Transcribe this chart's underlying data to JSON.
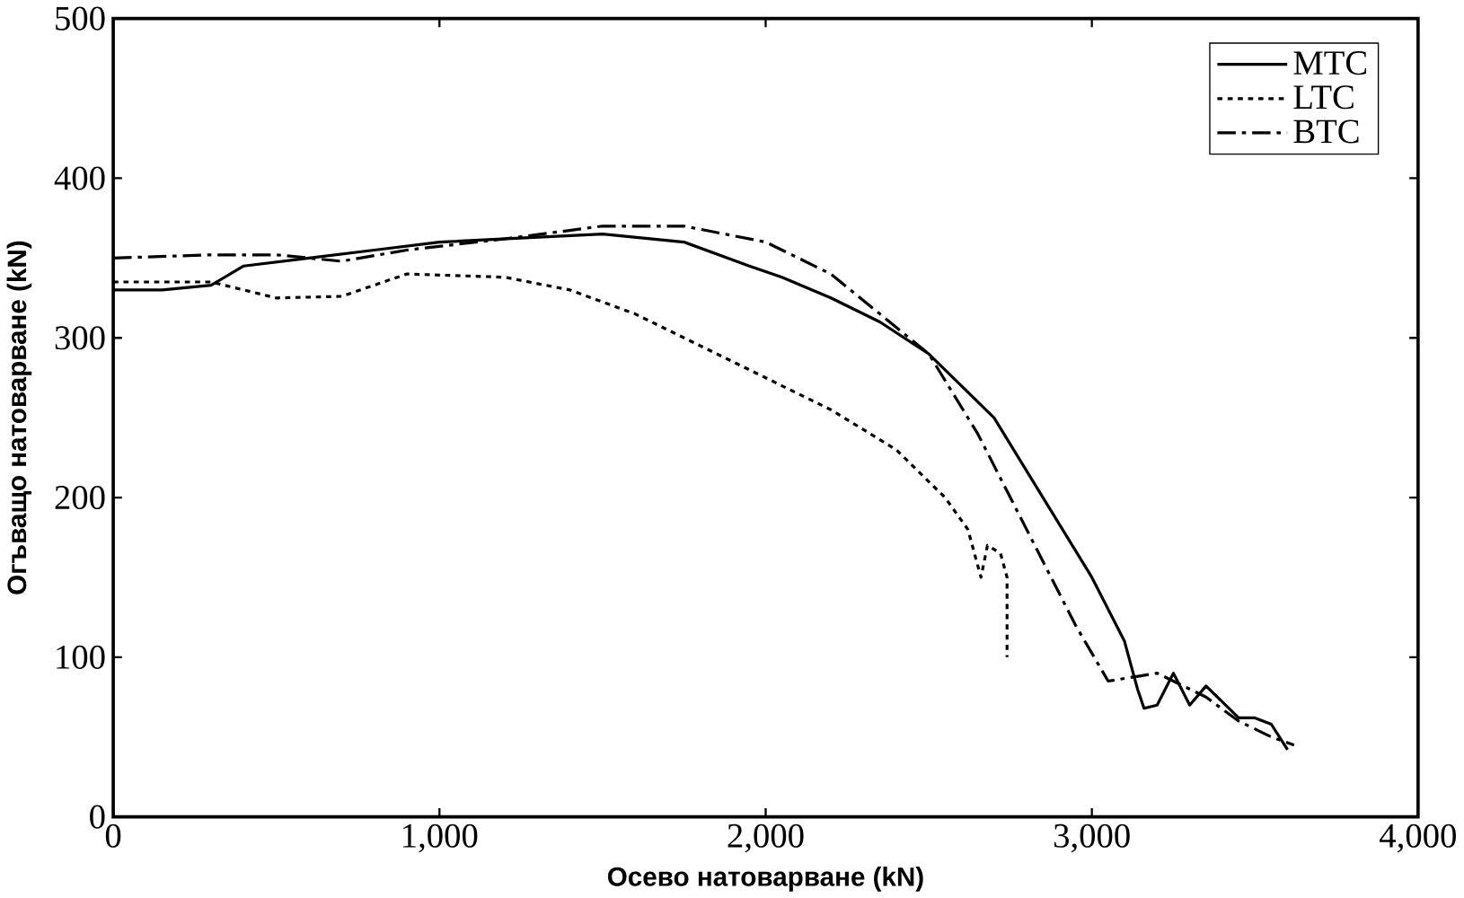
{
  "chart_data": {
    "type": "line",
    "xlabel": "Осево натоварване (kN)",
    "ylabel": "Огъващо натоварване  (kN)",
    "xlim": [
      0,
      4000
    ],
    "ylim": [
      0,
      500
    ],
    "xticks": [
      0,
      {
        "value": 1000,
        "label": "1,000"
      },
      {
        "value": 2000,
        "label": "2,000"
      },
      {
        "value": 3000,
        "label": "3,000"
      },
      {
        "value": 4000,
        "label": "4,000"
      }
    ],
    "yticks": [
      0,
      100,
      200,
      300,
      400,
      500
    ],
    "legend": "top right",
    "grid": false,
    "series": [
      {
        "name": "MTC",
        "color": "#000000",
        "line_style": "solid",
        "x": [
          0,
          150,
          300,
          400,
          600,
          800,
          1000,
          1200,
          1500,
          1750,
          1950,
          2050,
          2200,
          2350,
          2500,
          2700,
          2850,
          3000,
          3100,
          3140,
          3160,
          3200,
          3250,
          3300,
          3350,
          3400,
          3450,
          3500,
          3550,
          3600
        ],
        "values": [
          330,
          330,
          333,
          345,
          350,
          355,
          360,
          362,
          365,
          360,
          345,
          338,
          325,
          310,
          290,
          250,
          200,
          150,
          110,
          80,
          68,
          70,
          90,
          70,
          82,
          72,
          62,
          62,
          58,
          42
        ]
      },
      {
        "name": "LTC",
        "color": "#000000",
        "line_style": "dotted",
        "x": [
          0,
          300,
          400,
          500,
          700,
          900,
          1200,
          1400,
          1600,
          1800,
          2000,
          2200,
          2400,
          2550,
          2620,
          2660,
          2680,
          2720,
          2740,
          2740
        ],
        "values": [
          335,
          335,
          330,
          325,
          326,
          340,
          338,
          330,
          315,
          295,
          275,
          255,
          230,
          200,
          180,
          150,
          170,
          165,
          150,
          100
        ]
      },
      {
        "name": "BTC",
        "color": "#000000",
        "line_style": "dashdot",
        "x": [
          0,
          300,
          500,
          700,
          900,
          1200,
          1500,
          1750,
          2000,
          2200,
          2350,
          2500,
          2650,
          2800,
          2950,
          3050,
          3200,
          3350,
          3450,
          3550,
          3620
        ],
        "values": [
          350,
          352,
          352,
          348,
          355,
          362,
          370,
          370,
          360,
          340,
          315,
          290,
          240,
          180,
          120,
          85,
          90,
          75,
          60,
          50,
          45
        ]
      }
    ]
  }
}
